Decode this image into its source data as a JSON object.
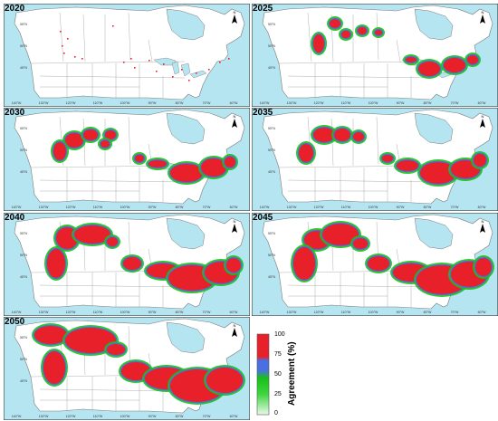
{
  "panels": [
    {
      "year": "2020"
    },
    {
      "year": "2025"
    },
    {
      "year": "2030"
    },
    {
      "year": "2035"
    },
    {
      "year": "2040"
    },
    {
      "year": "2045"
    },
    {
      "year": "2050"
    }
  ],
  "lat_labels": [
    "55°N",
    "50°N",
    "45°N"
  ],
  "lon_labels": [
    "140°W",
    "130°W",
    "120°W",
    "110°W",
    "100°W",
    "90°W",
    "80°W",
    "70°W",
    "60°W"
  ],
  "north_arrow": "N",
  "legend": {
    "title": "Agreement (%)",
    "ticks": [
      "100",
      "75",
      "50",
      "25",
      "0"
    ],
    "colors": [
      "#e8202a",
      "#4a6fe0",
      "#17c217",
      "#e6f9e6"
    ]
  },
  "colors": {
    "ocean": "#b6e5f2",
    "land": "#ffffff",
    "border": "#7a7a7a",
    "lakes": "#b6e5f2",
    "core": "#e8202a",
    "mid": "#4a6fe0",
    "halo": "#17c217"
  }
}
